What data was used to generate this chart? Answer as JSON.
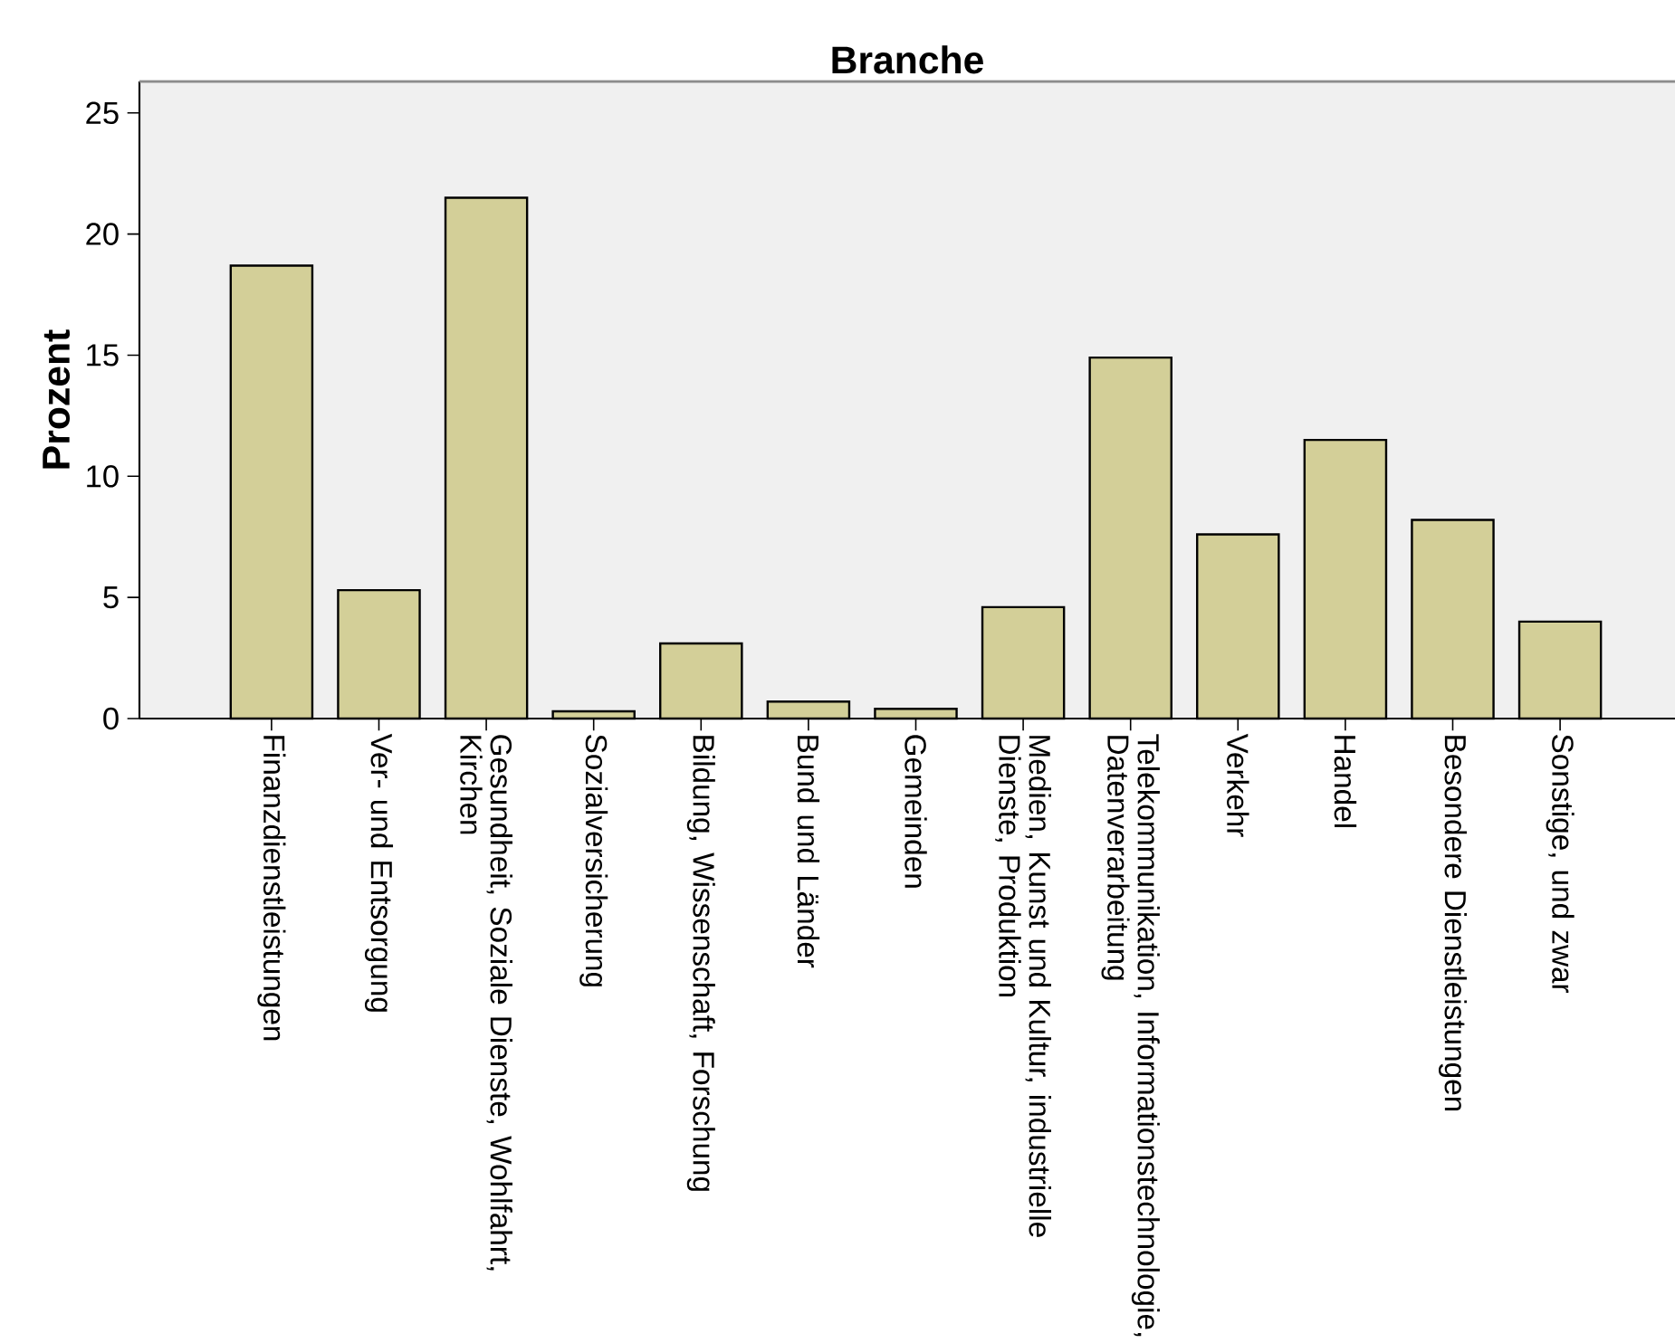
{
  "chart_data": {
    "type": "bar",
    "title": "Branche",
    "ylabel": "Prozent",
    "categories": [
      "Finanzdienstleistungen",
      "Ver- und Entsorgung",
      "Gesundheit, Soziale Dienste, Wohlfahrt, Kirchen",
      "Sozialversicherung",
      "Bildung, Wissenschaft, Forschung",
      "Bund und Länder",
      "Gemeinden",
      "Medien, Kunst und Kultur, industrielle Dienste, Produktion",
      "Telekommunikation, Informationstechnologie, Datenverarbeitung",
      "Verkehr",
      "Handel",
      "Besondere Dienstleistungen",
      "Sonstige, und zwar"
    ],
    "values": [
      18.7,
      5.3,
      21.5,
      0.3,
      3.1,
      0.7,
      0.4,
      4.6,
      14.9,
      7.6,
      11.5,
      8.2,
      4.0
    ],
    "color": "#d3cf98",
    "ylim": [
      0,
      26.3
    ],
    "yticks": [
      0,
      5,
      10,
      15,
      20,
      25
    ],
    "grid": false
  }
}
